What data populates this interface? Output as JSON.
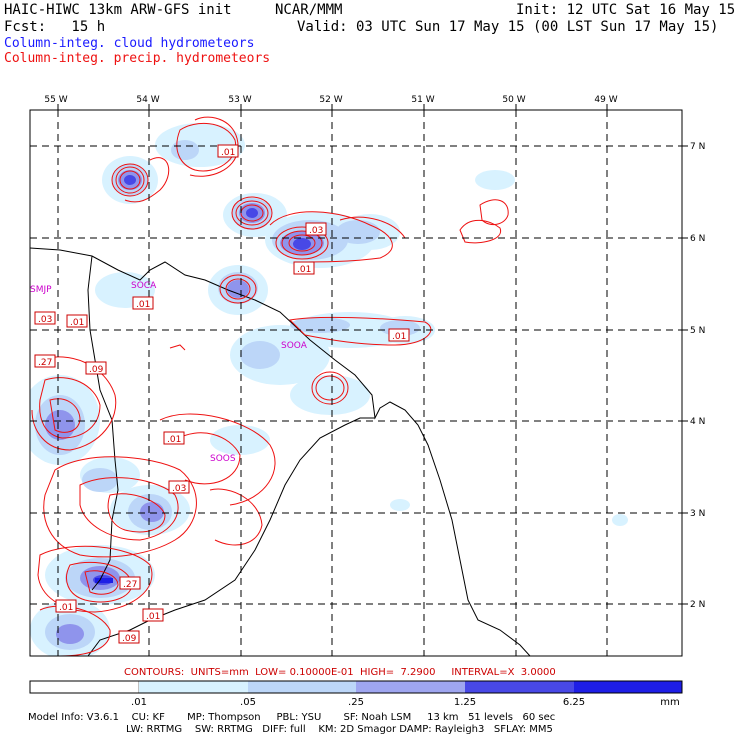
{
  "header": {
    "model_title": "HAIC-HIWC 13km ARW-GFS init",
    "org": "NCAR/MMM",
    "init": "Init: 12 UTC Sat 16 May 15",
    "fcst": "Fcst:   15 h",
    "valid": "Valid: 03 UTC Sun 17 May 15 (00 LST Sun 17 May 15)"
  },
  "legend": {
    "cloud_label": "Column-integ. cloud hydrometeors",
    "precip_label": "Column-integ. precip. hydrometeors",
    "cloud_color": "#1a1aff",
    "precip_color": "#ff0000"
  },
  "axes": {
    "lon_labels": [
      "55 W",
      "54 W",
      "53 W",
      "52 W",
      "51 W",
      "50 W",
      "49 W"
    ],
    "lat_labels": [
      "7 N",
      "6 N",
      "5 N",
      "4 N",
      "3 N",
      "2 N"
    ]
  },
  "stations": [
    "SMJP",
    "SOCA",
    "SOOA",
    "SOOS"
  ],
  "contour_labels": [
    ".01",
    ".03",
    ".01",
    ".01",
    ".01",
    ".03",
    ".01",
    ".27",
    ".09",
    ".01",
    ".03",
    ".27",
    ".01",
    ".01",
    ".09"
  ],
  "contour_info": {
    "text": "CONTOURS:  UNITS=mm  LOW= 0.10000E-01  HIGH=  7.2900     INTERVAL=X  3.0000"
  },
  "colorbar": {
    "ticks": [
      ".01",
      ".05",
      ".25",
      "1.25",
      "6.25"
    ],
    "units": "mm",
    "colors": [
      "#ffffff",
      "#d8f2ff",
      "#bcd6f8",
      "#9fa6f0",
      "#7070ea",
      "#4848e6",
      "#1e1ee6"
    ]
  },
  "footer": {
    "line1": "Model Info: V3.6.1    CU: KF       MP: Thompson     PBL: YSU       SF: Noah LSM     13 km   51 levels   60 sec",
    "line2": "LW: RRTMG    SW: RRTMG   DIFF: full    KM: 2D Smagor DAMP: Rayleigh3   SFLAY: MM5"
  }
}
